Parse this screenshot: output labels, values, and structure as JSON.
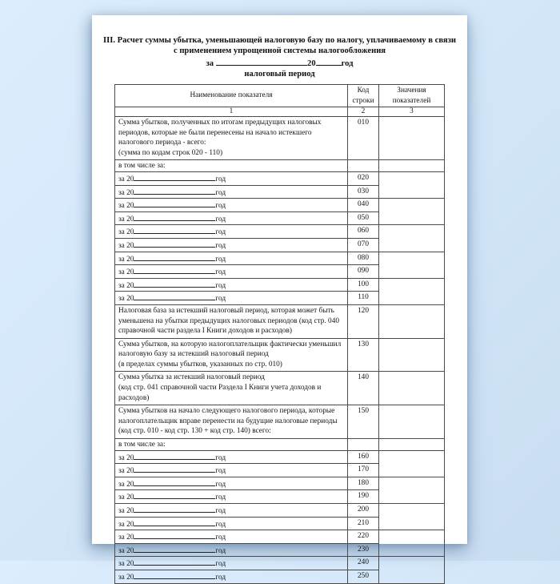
{
  "document": {
    "title_line1": "III. Расчет суммы убытка, уменьшающей налоговую базу по налогу, уплачиваемому в связи",
    "title_line2": "с применением упрощенной системы налогообложения",
    "period": {
      "prefix": "за",
      "century": "20",
      "year_word": "год",
      "caption": "налоговый период"
    }
  },
  "table": {
    "header": {
      "name": "Наименование показателя",
      "code": "Код строки",
      "values": "Значения показателей"
    },
    "numbering": {
      "name": "1",
      "code": "2",
      "values": "3"
    },
    "year_row": {
      "prefix": "за 20",
      "suffix": "год"
    },
    "rows": [
      {
        "kind": "desc",
        "code": "010",
        "name": "Сумма убытков, полученных по итогам предыдущих налоговых\nпериодов, которые не были перенесены на начало истекшего\nналогового периода - всего:\n(сумма по кодам строк 020 - 110)",
        "value": ""
      },
      {
        "kind": "label",
        "code": "",
        "name": "в том числе за:",
        "value": ""
      },
      {
        "kind": "year",
        "code": "020",
        "value": ""
      },
      {
        "kind": "year",
        "code": "030",
        "value": ""
      },
      {
        "kind": "year",
        "code": "040",
        "value": ""
      },
      {
        "kind": "year",
        "code": "050",
        "value": ""
      },
      {
        "kind": "year",
        "code": "060",
        "value": ""
      },
      {
        "kind": "year",
        "code": "070",
        "value": ""
      },
      {
        "kind": "year",
        "code": "080",
        "value": ""
      },
      {
        "kind": "year",
        "code": "090",
        "value": ""
      },
      {
        "kind": "year",
        "code": "100",
        "value": ""
      },
      {
        "kind": "year",
        "code": "110",
        "value": ""
      },
      {
        "kind": "desc",
        "code": "120",
        "name": "Налоговая база за истекший налоговый период, которая может быть\nуменьшена на убытки предыдущих налоговых периодов (код стр. 040\nсправочной части раздела I Книги доходов и расходов)",
        "value": ""
      },
      {
        "kind": "desc",
        "code": "130",
        "name": "Сумма убытков, на которую налогоплательщик фактически уменьшил\nналоговую базу за истекший налоговый период\n(в пределах суммы убытков, указанных по стр. 010)",
        "value": ""
      },
      {
        "kind": "desc",
        "code": "140",
        "name": "Сумма убытка за истекший налоговый период\n(код стр. 041 справочной части Раздела I Книги учета доходов и\nрасходов)",
        "value": ""
      },
      {
        "kind": "desc",
        "code": "150",
        "name": "Сумма убытков на начало следующего налогового периода, которые\nналогоплательщик вправе перенести на будущие налоговые периоды\n(код стр. 010 - код стр. 130 + код стр. 140) всего:",
        "value": ""
      },
      {
        "kind": "label",
        "code": "",
        "name": "в том числе за:",
        "value": ""
      },
      {
        "kind": "year",
        "code": "160",
        "value": ""
      },
      {
        "kind": "year",
        "code": "170",
        "value": ""
      },
      {
        "kind": "year",
        "code": "180",
        "value": ""
      },
      {
        "kind": "year",
        "code": "190",
        "value": ""
      },
      {
        "kind": "year",
        "code": "200",
        "value": ""
      },
      {
        "kind": "year",
        "code": "210",
        "value": ""
      },
      {
        "kind": "year",
        "code": "220",
        "value": ""
      },
      {
        "kind": "year",
        "code": "230",
        "value": ""
      },
      {
        "kind": "year",
        "code": "240",
        "value": ""
      },
      {
        "kind": "year",
        "code": "250",
        "value": ""
      }
    ]
  },
  "colors": {
    "background_top": "#dcedfd",
    "background_bottom": "#c9ddf2",
    "paper": "#ffffff",
    "table_border": "#4a4a4a",
    "text": "#141414"
  }
}
